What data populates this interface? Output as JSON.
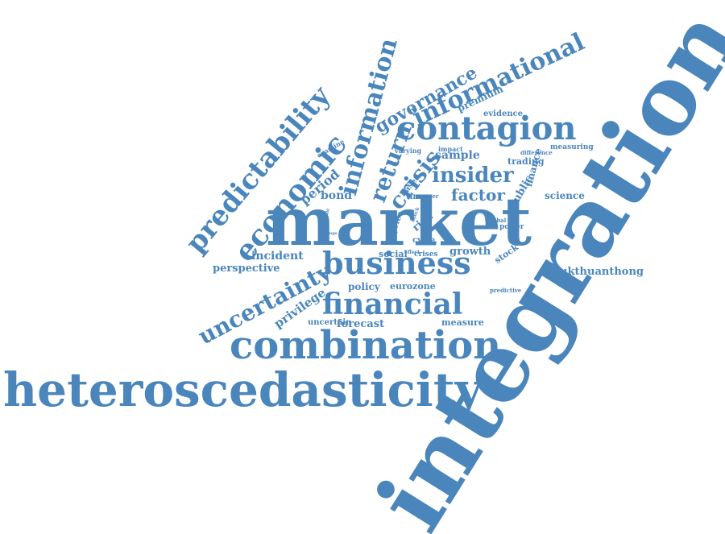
{
  "color": "#4a86bc",
  "words": [
    "integration",
    "market",
    "heteroscedasticity",
    "combination",
    "contagion",
    "business",
    "financial",
    "informational",
    "economic",
    "predictability",
    "information",
    "return",
    "insider",
    "crisis",
    "uncertainty",
    "governance",
    "factor",
    "pukthuanthong",
    "privilege",
    "period",
    "incident",
    "perspective",
    "bond",
    "sample",
    "forecast",
    "policy",
    "eurozone",
    "growth",
    "science",
    "premium",
    "evidence",
    "trading",
    "public",
    "finance",
    "measure",
    "uncertain",
    "social",
    "stock",
    "power",
    "cycle",
    "risk",
    "price",
    "time",
    "based",
    "impact",
    "varying",
    "measuring",
    "difference",
    "examine",
    "paper",
    "global",
    "predictive",
    "crises",
    "effect",
    "study",
    "dynamic",
    "findings",
    "shock"
  ]
}
